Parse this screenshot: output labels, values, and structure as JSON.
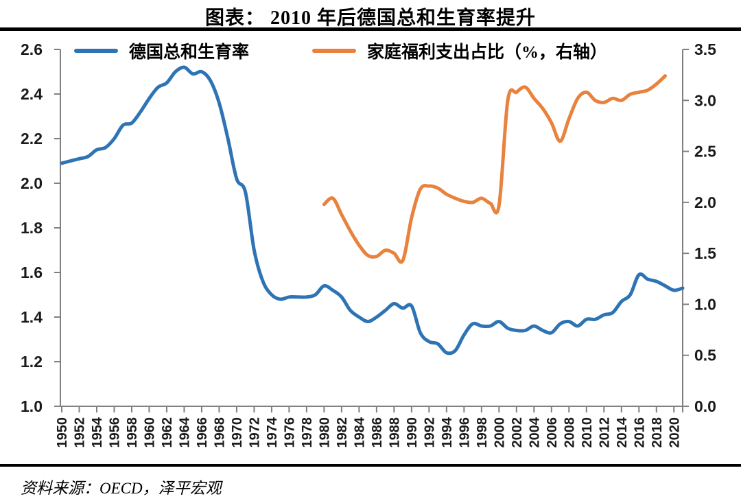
{
  "title": "图表： 2010 年后德国总和生育率提升",
  "source": "资料来源：OECD，泽平宏观",
  "chart_data": {
    "type": "line",
    "title": "2010 年后德国总和生育率提升",
    "legend_position": "top",
    "grid": false,
    "axis_color": "#808080",
    "text_color": "#1A1A1A",
    "x_min": 1950,
    "x_max": 2021,
    "x_labels": [
      "1950",
      "1952",
      "1954",
      "1956",
      "1958",
      "1960",
      "1962",
      "1964",
      "1966",
      "1968",
      "1970",
      "1972",
      "1974",
      "1976",
      "1978",
      "1980",
      "1982",
      "1984",
      "1986",
      "1988",
      "1990",
      "1992",
      "1994",
      "1996",
      "1998",
      "2000",
      "2002",
      "2004",
      "2006",
      "2008",
      "2010",
      "2012",
      "2014",
      "2016",
      "2018",
      "2020"
    ],
    "left_axis": {
      "min": 1.0,
      "max": 2.6,
      "step": 0.2,
      "labels": [
        "2.6",
        "2.4",
        "2.2",
        "2.0",
        "1.8",
        "1.6",
        "1.4",
        "1.2",
        "1.0"
      ]
    },
    "right_axis": {
      "min": 0.0,
      "max": 3.5,
      "step": 0.5,
      "labels": [
        "3.5",
        "3.0",
        "2.5",
        "2.0",
        "1.5",
        "1.0",
        "0.5",
        "0.0"
      ]
    },
    "series": [
      {
        "name": "德国总和生育率",
        "axis": "left",
        "color": "#2E74B5",
        "x_start": 1950,
        "values": [
          2.09,
          2.1,
          2.11,
          2.12,
          2.15,
          2.16,
          2.2,
          2.26,
          2.27,
          2.32,
          2.38,
          2.43,
          2.45,
          2.5,
          2.52,
          2.49,
          2.5,
          2.46,
          2.36,
          2.2,
          2.02,
          1.96,
          1.7,
          1.56,
          1.5,
          1.48,
          1.49,
          1.49,
          1.49,
          1.5,
          1.54,
          1.52,
          1.49,
          1.43,
          1.4,
          1.38,
          1.4,
          1.43,
          1.46,
          1.44,
          1.45,
          1.33,
          1.29,
          1.28,
          1.24,
          1.25,
          1.32,
          1.37,
          1.36,
          1.36,
          1.38,
          1.35,
          1.34,
          1.34,
          1.36,
          1.34,
          1.33,
          1.37,
          1.38,
          1.36,
          1.39,
          1.39,
          1.41,
          1.42,
          1.47,
          1.5,
          1.59,
          1.57,
          1.56,
          1.54,
          1.52,
          1.53
        ]
      },
      {
        "name": "家庭福利支出占比（%，右轴）",
        "axis": "right",
        "color": "#E8823D",
        "x_start": 1980,
        "values": [
          1.98,
          2.04,
          1.88,
          1.72,
          1.58,
          1.48,
          1.47,
          1.53,
          1.5,
          1.43,
          1.85,
          2.13,
          2.16,
          2.14,
          2.08,
          2.04,
          2.01,
          2.0,
          2.04,
          1.99,
          1.97,
          3.0,
          3.08,
          3.13,
          3.02,
          2.92,
          2.78,
          2.6,
          2.82,
          3.02,
          3.08,
          3.0,
          2.98,
          3.02,
          3.0,
          3.06,
          3.08,
          3.1,
          3.16,
          3.24
        ]
      }
    ]
  }
}
